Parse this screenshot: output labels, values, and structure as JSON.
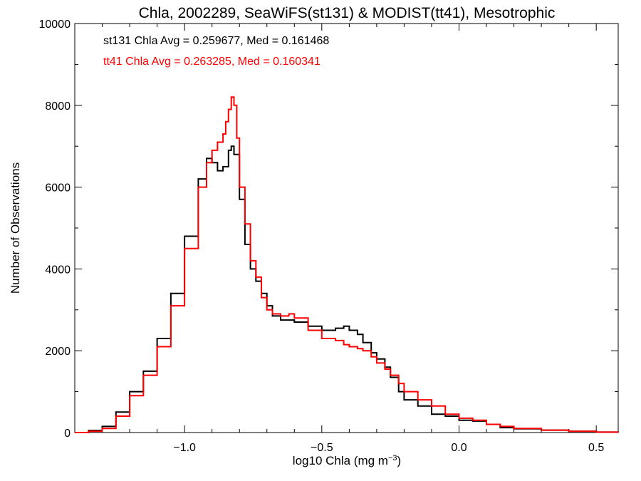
{
  "chart_data": {
    "type": "line",
    "style": "step-histogram",
    "title": "Chla, 2002289, SeaWiFS(st131) & MODIST(tt41), Mesotrophic",
    "xlabel": "log10 Chla (mg m⁻³)",
    "ylabel": "Number of Observations",
    "xlim": [
      -1.4,
      0.58
    ],
    "ylim": [
      0,
      10000
    ],
    "x_ticks": [
      -1.0,
      -0.5,
      0.0,
      0.5
    ],
    "x_tick_labels": [
      "−1.0",
      "−0.5",
      "0.0",
      "0.5"
    ],
    "y_ticks": [
      0,
      2000,
      4000,
      6000,
      8000,
      10000
    ],
    "y_tick_labels": [
      "0",
      "2000",
      "4000",
      "6000",
      "8000",
      "10000"
    ],
    "grid": false,
    "annotations": [
      {
        "text": "st131 Chla Avg = 0.259677, Med = 0.161468",
        "color": "#000000"
      },
      {
        "text": "tt41 Chla Avg = 0.263285, Med = 0.160341",
        "color": "#ff0000"
      }
    ],
    "series": [
      {
        "color": "#000000",
        "x": [
          -1.4,
          -1.35,
          -1.3,
          -1.25,
          -1.2,
          -1.15,
          -1.1,
          -1.05,
          -1.0,
          -0.95,
          -0.92,
          -0.9,
          -0.88,
          -0.86,
          -0.84,
          -0.83,
          -0.82,
          -0.8,
          -0.78,
          -0.76,
          -0.74,
          -0.72,
          -0.7,
          -0.68,
          -0.65,
          -0.6,
          -0.55,
          -0.5,
          -0.45,
          -0.42,
          -0.4,
          -0.37,
          -0.35,
          -0.32,
          -0.3,
          -0.27,
          -0.25,
          -0.22,
          -0.2,
          -0.15,
          -0.1,
          -0.05,
          0.0,
          0.05,
          0.1,
          0.15,
          0.2,
          0.3,
          0.4,
          0.5,
          0.58
        ],
        "values": [
          0,
          50,
          150,
          500,
          1000,
          1500,
          2300,
          3400,
          4800,
          6200,
          6700,
          6600,
          6400,
          6500,
          6900,
          7000,
          6800,
          5700,
          4600,
          4000,
          3700,
          3400,
          3100,
          2850,
          2750,
          2700,
          2600,
          2500,
          2550,
          2600,
          2500,
          2400,
          2200,
          1950,
          1800,
          1600,
          1350,
          1000,
          800,
          650,
          450,
          400,
          300,
          280,
          200,
          120,
          90,
          60,
          30,
          10,
          0
        ]
      },
      {
        "color": "#ff0000",
        "x": [
          -1.4,
          -1.35,
          -1.3,
          -1.25,
          -1.2,
          -1.15,
          -1.1,
          -1.05,
          -1.0,
          -0.95,
          -0.92,
          -0.9,
          -0.88,
          -0.86,
          -0.85,
          -0.84,
          -0.83,
          -0.82,
          -0.81,
          -0.8,
          -0.78,
          -0.76,
          -0.74,
          -0.72,
          -0.7,
          -0.68,
          -0.65,
          -0.62,
          -0.6,
          -0.55,
          -0.5,
          -0.45,
          -0.42,
          -0.4,
          -0.37,
          -0.35,
          -0.32,
          -0.3,
          -0.27,
          -0.25,
          -0.22,
          -0.2,
          -0.15,
          -0.1,
          -0.05,
          0.0,
          0.05,
          0.1,
          0.15,
          0.2,
          0.3,
          0.4,
          0.5,
          0.58
        ],
        "values": [
          0,
          30,
          100,
          400,
          900,
          1400,
          2100,
          3100,
          4500,
          6000,
          6600,
          6900,
          7100,
          7300,
          7600,
          7900,
          8200,
          8000,
          7200,
          6000,
          5100,
          4200,
          3800,
          3300,
          3000,
          2900,
          2850,
          2900,
          2800,
          2500,
          2300,
          2250,
          2150,
          2100,
          2050,
          2000,
          1850,
          1700,
          1550,
          1400,
          1200,
          1000,
          800,
          650,
          450,
          350,
          300,
          200,
          150,
          100,
          60,
          30,
          10,
          0
        ]
      }
    ]
  }
}
